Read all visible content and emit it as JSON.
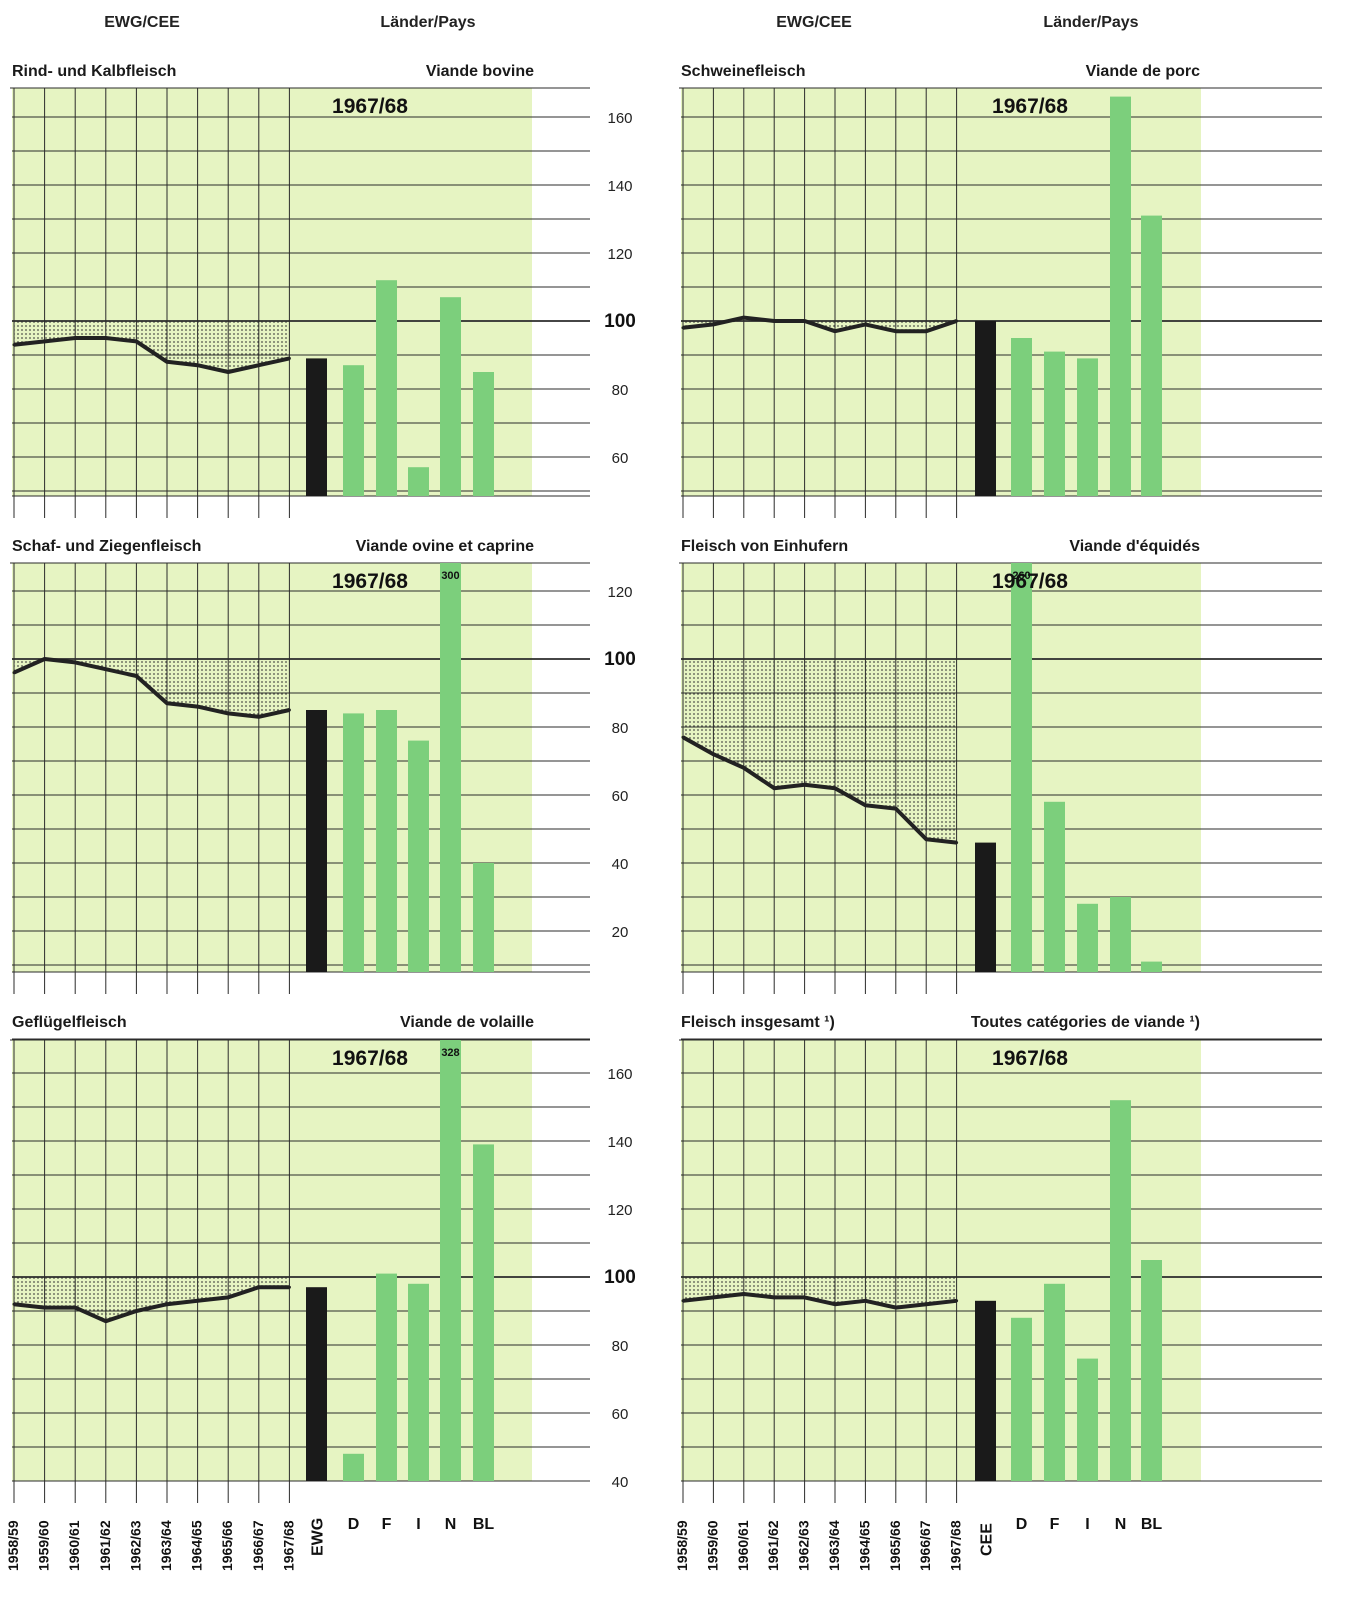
{
  "headers": {
    "left_ewg": "EWG/CEE",
    "left_laender": "Länder/Pays",
    "right_ewg": "EWG/CEE",
    "right_laender": "Länder/Pays"
  },
  "colors": {
    "panel_bg": "#e6f4c2",
    "country_bar": "#7ccf7c",
    "aggregate_bar": "#1a1a1a",
    "trend_line": "#222222",
    "grid": "#2b2b2b"
  },
  "chart_data": [
    {
      "id": "beef",
      "type": "bar",
      "title_de": "Rind- und Kalbfleisch",
      "title_fr": "Viande bovine",
      "year_label": "1967/68",
      "ylim": [
        49,
        170
      ],
      "trend": {
        "x": [
          "1958/59",
          "1959/60",
          "1960/61",
          "1961/62",
          "1962/63",
          "1963/64",
          "1964/65",
          "1965/66",
          "1966/67",
          "1967/68"
        ],
        "values": [
          93,
          94,
          95,
          95,
          94,
          88,
          87,
          85,
          87,
          89
        ]
      },
      "categories": [
        "EWG",
        "D",
        "F",
        "I",
        "N",
        "BL"
      ],
      "values": [
        89,
        87,
        112,
        57,
        107,
        85
      ],
      "bar_labels": [
        "",
        "",
        "",
        "",
        "",
        ""
      ]
    },
    {
      "id": "sheep",
      "type": "bar",
      "title_de": "Schaf- und Ziegenfleisch",
      "title_fr": "Viande ovine et caprine",
      "year_label": "1967/68",
      "ylim": [
        8,
        128
      ],
      "trend": {
        "x": [
          "1958/59",
          "1959/60",
          "1960/61",
          "1961/62",
          "1962/63",
          "1963/64",
          "1964/65",
          "1965/66",
          "1966/67",
          "1967/68"
        ],
        "values": [
          96,
          100,
          99,
          97,
          95,
          87,
          86,
          84,
          83,
          85
        ]
      },
      "categories": [
        "EWG",
        "D",
        "F",
        "I",
        "N",
        "BL"
      ],
      "values": [
        85,
        84,
        85,
        76,
        300,
        40
      ],
      "bar_labels": [
        "",
        "",
        "",
        "",
        "300",
        ""
      ]
    },
    {
      "id": "poultry",
      "type": "bar",
      "title_de": "Geflügelfleisch",
      "title_fr": "Viande de volaille",
      "year_label": "1967/68",
      "ylim": [
        40,
        170
      ],
      "trend": {
        "x": [
          "1958/59",
          "1959/60",
          "1960/61",
          "1961/62",
          "1962/63",
          "1963/64",
          "1964/65",
          "1965/66",
          "1966/67",
          "1967/68"
        ],
        "values": [
          92,
          91,
          91,
          87,
          90,
          92,
          93,
          94,
          97,
          97
        ]
      },
      "categories": [
        "EWG",
        "D",
        "F",
        "I",
        "N",
        "BL"
      ],
      "values": [
        97,
        48,
        101,
        98,
        328,
        139
      ],
      "bar_labels": [
        "",
        "",
        "",
        "",
        "328",
        ""
      ],
      "x_tick_labels": [
        "1958/59",
        "1959/60",
        "1960/61",
        "1961/62",
        "1962/63",
        "1963/64",
        "1964/65",
        "1965/66",
        "1966/67",
        "1967/68"
      ],
      "category_labels": [
        "EWG",
        "D",
        "F",
        "I",
        "N",
        "BL"
      ]
    },
    {
      "id": "pork",
      "type": "bar",
      "title_de": "Schweinefleisch",
      "title_fr": "Viande de porc",
      "year_label": "1967/68",
      "ylim": [
        49,
        170
      ],
      "yticks": [
        60,
        80,
        100,
        120,
        140,
        160
      ],
      "trend": {
        "x": [
          "1958/59",
          "1959/60",
          "1960/61",
          "1961/62",
          "1962/63",
          "1963/64",
          "1964/65",
          "1965/66",
          "1966/67",
          "1967/68"
        ],
        "values": [
          98,
          99,
          101,
          100,
          100,
          97,
          99,
          97,
          97,
          100
        ]
      },
      "categories": [
        "CEE",
        "D",
        "F",
        "I",
        "N",
        "BL"
      ],
      "values": [
        100,
        95,
        91,
        89,
        166,
        131
      ],
      "bar_labels": [
        "",
        "",
        "",
        "",
        "",
        ""
      ]
    },
    {
      "id": "equine",
      "type": "bar",
      "title_de": "Fleisch von Einhufern",
      "title_fr": "Viande d'équidés",
      "year_label": "1967/68",
      "ylim": [
        8,
        128
      ],
      "yticks": [
        20,
        40,
        60,
        80,
        100,
        120
      ],
      "trend": {
        "x": [
          "1958/59",
          "1959/60",
          "1960/61",
          "1961/62",
          "1962/63",
          "1963/64",
          "1964/65",
          "1965/66",
          "1966/67",
          "1967/68"
        ],
        "values": [
          77,
          72,
          68,
          62,
          63,
          62,
          57,
          56,
          47,
          46
        ]
      },
      "categories": [
        "CEE",
        "D",
        "F",
        "I",
        "N",
        "BL"
      ],
      "values": [
        46,
        260,
        58,
        28,
        30,
        11
      ],
      "bar_labels": [
        "",
        "260",
        "",
        "",
        "",
        ""
      ]
    },
    {
      "id": "total",
      "type": "bar",
      "title_de": "Fleisch insgesamt ¹)",
      "title_fr": "Toutes catégories de viande ¹)",
      "year_label": "1967/68",
      "ylim": [
        40,
        170
      ],
      "yticks": [
        40,
        60,
        80,
        100,
        120,
        140,
        160
      ],
      "trend": {
        "x": [
          "1958/59",
          "1959/60",
          "1960/61",
          "1961/62",
          "1962/63",
          "1963/64",
          "1964/65",
          "1965/66",
          "1966/67",
          "1967/68"
        ],
        "values": [
          93,
          94,
          95,
          94,
          94,
          92,
          93,
          91,
          92,
          93
        ]
      },
      "categories": [
        "CEE",
        "D",
        "F",
        "I",
        "N",
        "BL"
      ],
      "values": [
        93,
        88,
        98,
        76,
        152,
        105
      ],
      "bar_labels": [
        "",
        "",
        "",
        "",
        "",
        ""
      ],
      "x_tick_labels": [
        "1958/59",
        "1959/60",
        "1960/61",
        "1961/62",
        "1962/63",
        "1963/64",
        "1964/65",
        "1965/66",
        "1966/67",
        "1967/68"
      ],
      "category_labels": [
        "CEE",
        "D",
        "F",
        "I",
        "N",
        "BL"
      ]
    }
  ]
}
